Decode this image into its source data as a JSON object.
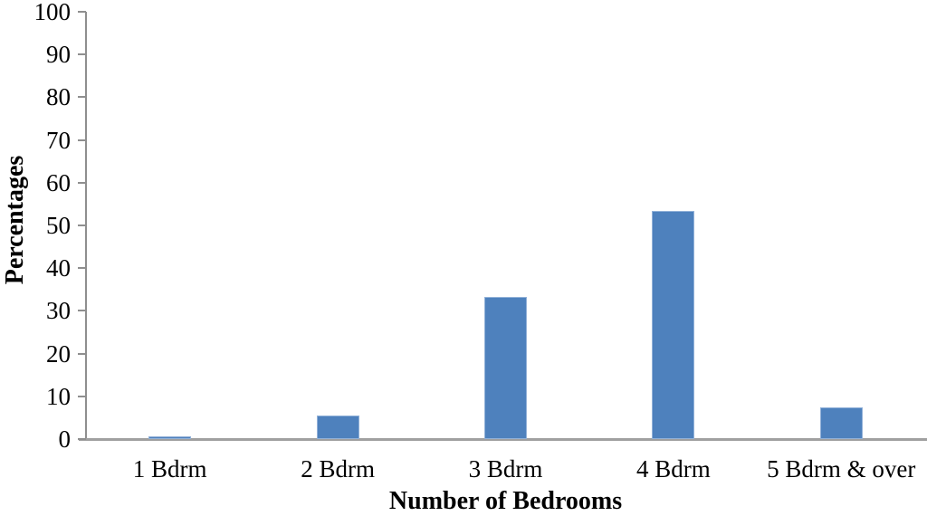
{
  "chart_data": {
    "type": "bar",
    "title": "",
    "xlabel": "Number of Bedrooms",
    "ylabel": "Percentages",
    "categories": [
      "1 Bdrm",
      "2 Bdrm",
      "3 Bdrm",
      "4 Bdrm",
      "5 Bdrm & over"
    ],
    "values": [
      0.6,
      5.6,
      33.3,
      53.3,
      7.4
    ],
    "ylim": [
      0,
      100
    ],
    "yticks": [
      0,
      10,
      20,
      30,
      40,
      50,
      60,
      70,
      80,
      90,
      100
    ],
    "grid": "off",
    "legend": "none",
    "bar_color": "#4E81BD",
    "bar_border_color": "#92B1D8",
    "axis_color": "#8F8F8F",
    "baseline_color": "#A0A0A0",
    "text_color": "#000000"
  }
}
